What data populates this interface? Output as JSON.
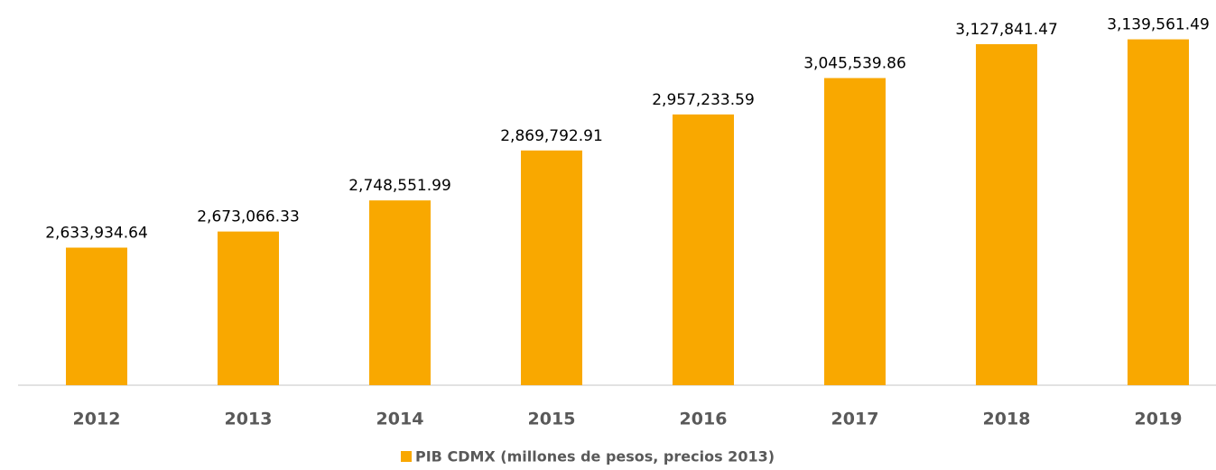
{
  "chart_data": {
    "type": "bar",
    "categories": [
      "2012",
      "2013",
      "2014",
      "2015",
      "2016",
      "2017",
      "2018",
      "2019"
    ],
    "series": [
      {
        "name": "PIB CDMX (millones de pesos, precios 2013)",
        "color": "#f9a800",
        "values": [
          2633934.64,
          2673066.33,
          2748551.99,
          2869792.91,
          2957233.59,
          3045539.86,
          3127841.47,
          3139561.49
        ],
        "value_labels": [
          "2,633,934.64",
          "2,673,066.33",
          "2,748,551.99",
          "2,869,792.91",
          "2,957,233.59",
          "3,045,539.86",
          "3,127,841.47",
          "3,139,561.49"
        ]
      }
    ],
    "ylim": [
      2300000,
      3200000
    ]
  }
}
